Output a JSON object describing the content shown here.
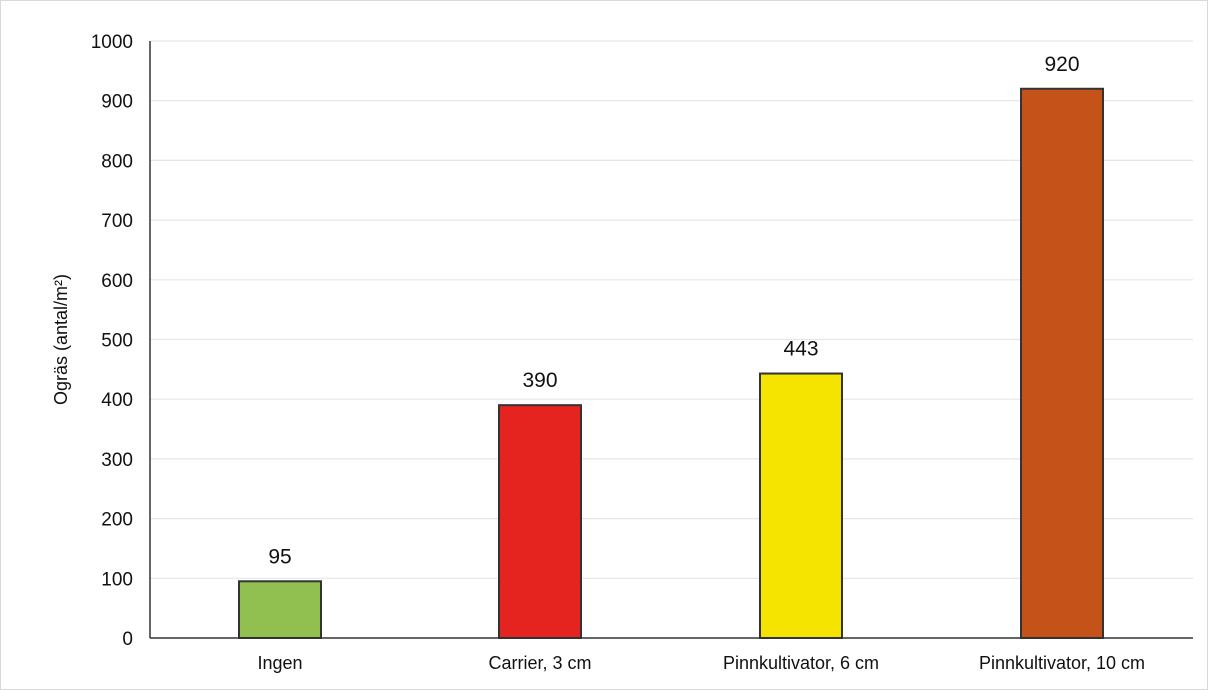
{
  "chart_data": {
    "type": "bar",
    "categories": [
      "Ingen",
      "Carrier, 3 cm",
      "Pinnkultivator, 6 cm",
      "Pinnkultivator, 10 cm"
    ],
    "values": [
      95,
      390,
      443,
      920
    ],
    "data_labels": [
      "95",
      "390",
      "443",
      "920"
    ],
    "colors": [
      "#92c050",
      "#e52420",
      "#f5e400",
      "#c55219"
    ],
    "edge_color": "#333333",
    "ylabel": "Ogräs (antal/m²)",
    "ylim": [
      0,
      1000
    ],
    "yticks": [
      0,
      100,
      200,
      300,
      400,
      500,
      600,
      700,
      800,
      900,
      1000
    ],
    "grid": true,
    "grid_color": "#e6e6e6",
    "legend": "none"
  }
}
